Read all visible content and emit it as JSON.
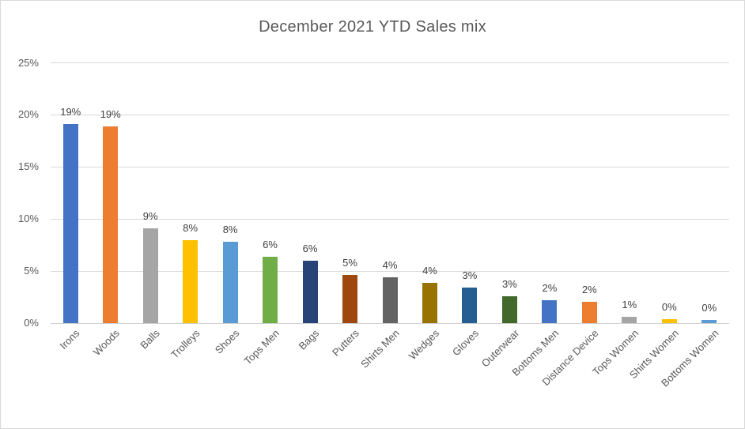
{
  "chart_data": {
    "type": "bar",
    "title": "December 2021 YTD Sales mix",
    "categories": [
      "Irons",
      "Woods",
      "Balls",
      "Trolleys",
      "Shoes",
      "Tops Men",
      "Bags",
      "Putters",
      "Shirts Men",
      "Wedges",
      "Gloves",
      "Outerwear",
      "Bottoms Men",
      "Distance Device",
      "Tops Women",
      "Shirts Women",
      "Bottoms Women"
    ],
    "values": [
      19.1,
      18.9,
      9.1,
      8.0,
      7.8,
      6.4,
      6.0,
      4.6,
      4.4,
      3.9,
      3.4,
      2.6,
      2.2,
      2.05,
      0.6,
      0.4,
      0.3
    ],
    "data_labels": [
      "19%",
      "19%",
      "9%",
      "8%",
      "8%",
      "6%",
      "6%",
      "5%",
      "4%",
      "4%",
      "3%",
      "3%",
      "2%",
      "2%",
      "1%",
      "0%",
      "0%"
    ],
    "bar_colors": [
      "#4472C4",
      "#ED7D31",
      "#A5A5A5",
      "#FFC000",
      "#5B9BD5",
      "#70AD47",
      "#264478",
      "#9E480E",
      "#636363",
      "#997300",
      "#255E91",
      "#43682B",
      "#4472C4",
      "#ED7D31",
      "#A5A5A5",
      "#FFC000",
      "#5B9BD5"
    ],
    "xlabel": "",
    "ylabel": "",
    "ylim": [
      0,
      25
    ],
    "ytick_step": 5,
    "ytick_labels": [
      "0%",
      "5%",
      "10%",
      "15%",
      "20%",
      "25%"
    ],
    "grid": true,
    "legend": false,
    "colors": {
      "title_text": "#595959",
      "axis_text": "#595959",
      "data_label_text": "#404040",
      "gridline": "#d9d9d9",
      "frame_border": "#d9d9d9",
      "background": "#ffffff"
    }
  }
}
